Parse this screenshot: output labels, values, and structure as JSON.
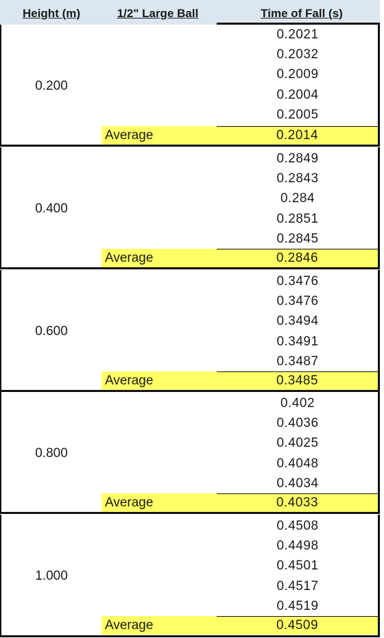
{
  "headers": {
    "height": "Height (m)",
    "ball": "1/2\" Large Ball",
    "time": "Time of Fall (s)"
  },
  "average_label": "Average",
  "colors": {
    "header_bg": "#dce6f1",
    "highlight": "#ffff66"
  },
  "groups": [
    {
      "height": "0.200",
      "trials": [
        "0.2021",
        "0.2032",
        "0.2009",
        "0.2004",
        "0.2005"
      ],
      "average": "0.2014"
    },
    {
      "height": "0.400",
      "trials": [
        "0.2849",
        "0.2843",
        "0.284",
        "0.2851",
        "0.2845"
      ],
      "average": "0.2846"
    },
    {
      "height": "0.600",
      "trials": [
        "0.3476",
        "0.3476",
        "0.3494",
        "0.3491",
        "0.3487"
      ],
      "average": "0.3485"
    },
    {
      "height": "0.800",
      "trials": [
        "0.402",
        "0.4036",
        "0.4025",
        "0.4048",
        "0.4034"
      ],
      "average": "0.4033"
    },
    {
      "height": "1.000",
      "trials": [
        "0.4508",
        "0.4498",
        "0.4501",
        "0.4517",
        "0.4519"
      ],
      "average": "0.4509"
    }
  ]
}
